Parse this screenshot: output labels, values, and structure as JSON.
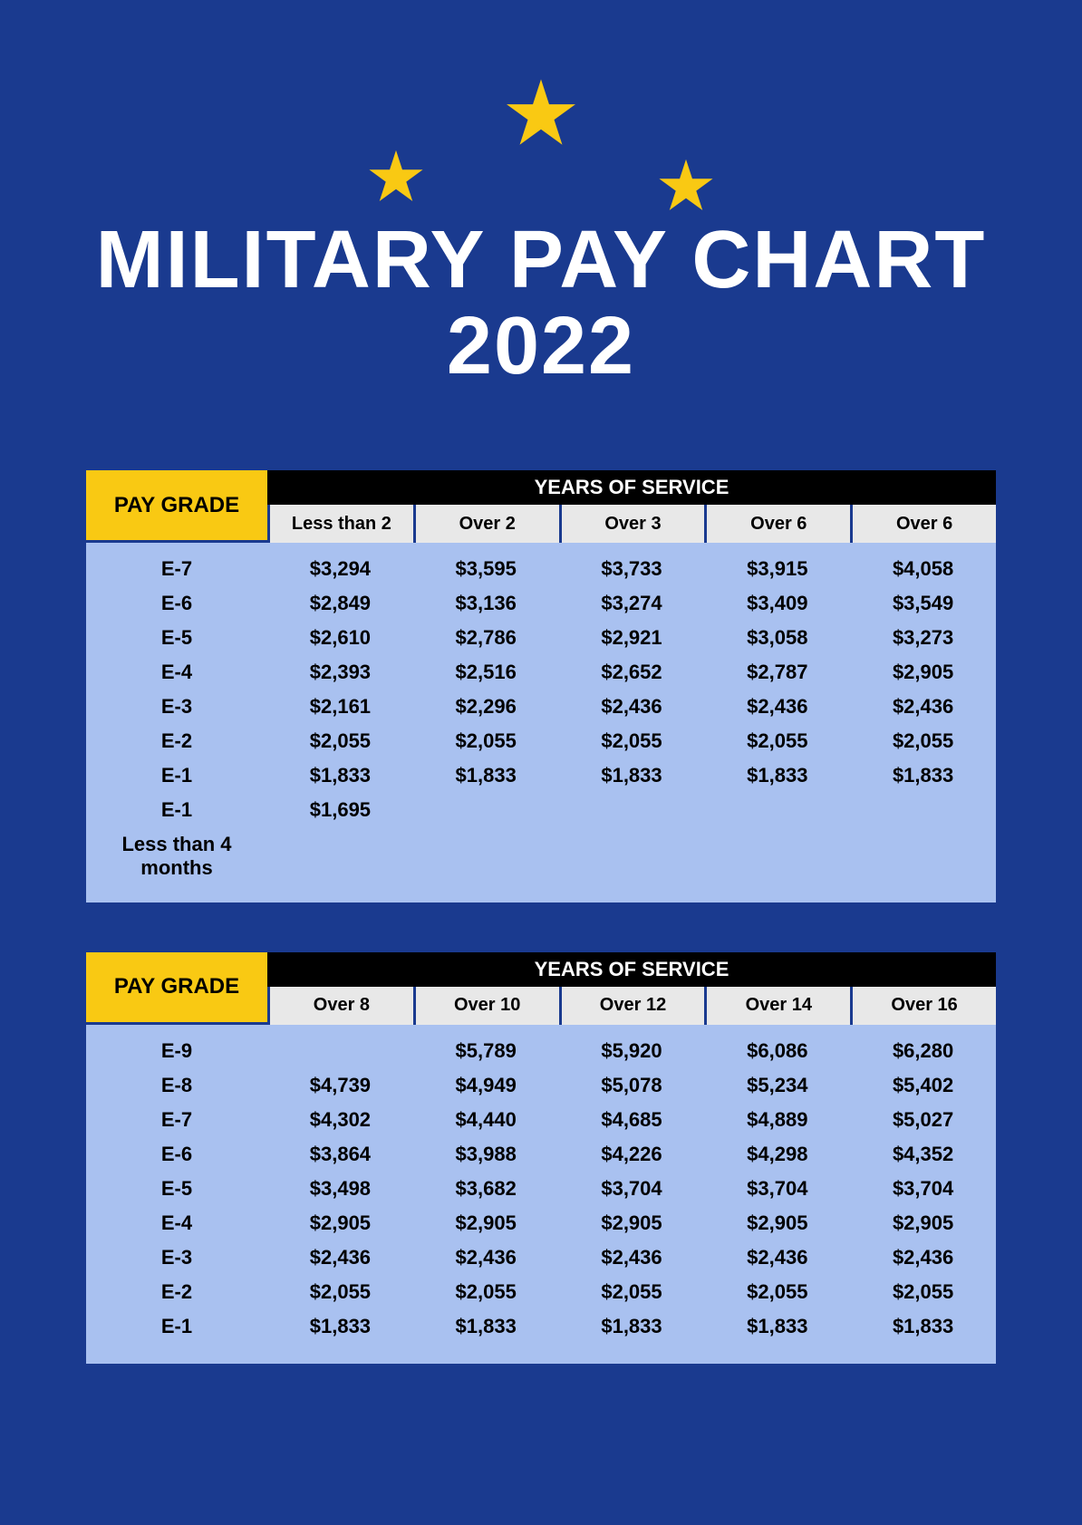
{
  "title": "MILITARY PAY CHART 2022",
  "colors": {
    "background": "#1a3a8f",
    "star": "#f9c913",
    "title_text": "#ffffff",
    "paygrade_bg": "#f9c913",
    "ys_title_bg": "#000000",
    "ys_title_text": "#ffffff",
    "ys_col_bg": "#e8e8e8",
    "body_bg": "#a9c1f0",
    "text": "#000000"
  },
  "paygrade_label": "PAY GRADE",
  "years_label": "YEARS OF SERVICE",
  "table1": {
    "columns": [
      "Less than 2",
      "Over 2",
      "Over 3",
      "Over 6",
      "Over 6"
    ],
    "rows": [
      {
        "label": "E-7",
        "cells": [
          "$3,294",
          "$3,595",
          "$3,733",
          "$3,915",
          "$4,058"
        ]
      },
      {
        "label": "E-6",
        "cells": [
          "$2,849",
          "$3,136",
          "$3,274",
          "$3,409",
          "$3,549"
        ]
      },
      {
        "label": "E-5",
        "cells": [
          "$2,610",
          "$2,786",
          "$2,921",
          "$3,058",
          "$3,273"
        ]
      },
      {
        "label": "E-4",
        "cells": [
          "$2,393",
          "$2,516",
          "$2,652",
          "$2,787",
          "$2,905"
        ]
      },
      {
        "label": "E-3",
        "cells": [
          "$2,161",
          "$2,296",
          "$2,436",
          "$2,436",
          "$2,436"
        ]
      },
      {
        "label": "E-2",
        "cells": [
          "$2,055",
          "$2,055",
          "$2,055",
          "$2,055",
          "$2,055"
        ]
      },
      {
        "label": "E-1",
        "cells": [
          "$1,833",
          "$1,833",
          "$1,833",
          "$1,833",
          "$1,833"
        ]
      },
      {
        "label": "E-1",
        "cells": [
          "$1,695",
          "",
          "",
          "",
          ""
        ]
      },
      {
        "label": "Less than 4 months",
        "cells": [
          "",
          "",
          "",
          "",
          ""
        ]
      }
    ]
  },
  "table2": {
    "columns": [
      "Over 8",
      "Over 10",
      "Over 12",
      "Over 14",
      "Over 16"
    ],
    "rows": [
      {
        "label": "E-9",
        "cells": [
          "",
          "$5,789",
          "$5,920",
          "$6,086",
          "$6,280"
        ]
      },
      {
        "label": "E-8",
        "cells": [
          "$4,739",
          "$4,949",
          "$5,078",
          "$5,234",
          "$5,402"
        ]
      },
      {
        "label": "E-7",
        "cells": [
          "$4,302",
          "$4,440",
          "$4,685",
          "$4,889",
          "$5,027"
        ]
      },
      {
        "label": "E-6",
        "cells": [
          "$3,864",
          "$3,988",
          "$4,226",
          "$4,298",
          "$4,352"
        ]
      },
      {
        "label": "E-5",
        "cells": [
          "$3,498",
          "$3,682",
          "$3,704",
          "$3,704",
          "$3,704"
        ]
      },
      {
        "label": "E-4",
        "cells": [
          "$2,905",
          "$2,905",
          "$2,905",
          "$2,905",
          "$2,905"
        ]
      },
      {
        "label": "E-3",
        "cells": [
          "$2,436",
          "$2,436",
          "$2,436",
          "$2,436",
          "$2,436"
        ]
      },
      {
        "label": "E-2",
        "cells": [
          "$2,055",
          "$2,055",
          "$2,055",
          "$2,055",
          "$2,055"
        ]
      },
      {
        "label": "E-1",
        "cells": [
          "$1,833",
          "$1,833",
          "$1,833",
          "$1,833",
          "$1,833"
        ]
      }
    ]
  }
}
